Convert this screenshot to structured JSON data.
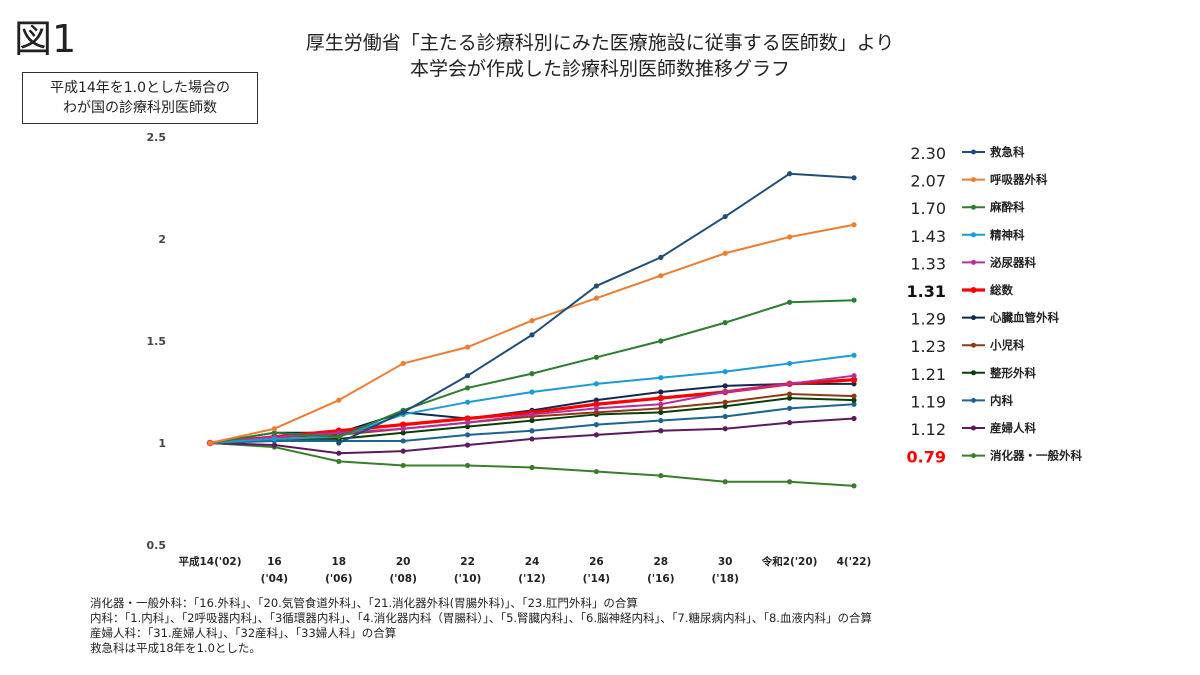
{
  "figure_label": "図1",
  "title_lines": [
    "厚生労働省「主たる診療科別にみた医療施設に従事する医師数」より",
    "本学会が作成した診療科別医師数推移グラフ"
  ],
  "ylabel_lines": [
    "平成14年を1.0とした場合の",
    "わが国の診療科別医師数"
  ],
  "notes": [
    "消化器・一般外科：「16.外科」、「20.気管食道外科」、「21.消化器外科(胃腸外科)」、「23.肛門外科」の合算",
    "内科：「1.内科」、「2呼吸器内科」、「3循環器内科」、「4.消化器内科（胃腸科）」、「5.腎臓内科」、「6.脳神経内科」、「7.糖尿病内科」、「8.血液内科」の合算",
    "産婦人科：「31.産婦人科」、「32産科」、「33婦人科」の合算",
    "救急科は平成18年を1.0とした。"
  ],
  "chart_data": {
    "type": "line",
    "x_tick_labels": [
      [
        "平成14('02)",
        ""
      ],
      [
        "16",
        "('04)"
      ],
      [
        "18",
        "('06)"
      ],
      [
        "20",
        "('08)"
      ],
      [
        "22",
        "('10)"
      ],
      [
        "24",
        "('12)"
      ],
      [
        "26",
        "('14)"
      ],
      [
        "28",
        "('16)"
      ],
      [
        "30",
        "('18)"
      ],
      [
        "令和2('20)",
        ""
      ],
      [
        "4('22)",
        ""
      ]
    ],
    "ylim": [
      0.5,
      2.5
    ],
    "y_ticks": [
      0.5,
      1,
      1.5,
      2,
      2.5
    ],
    "y_tick_labels": [
      "0.5",
      "1",
      "1.5",
      "2",
      "2.5"
    ],
    "grid": false,
    "legend_position": "right",
    "series": [
      {
        "name": "救急科",
        "color": "#1f4e79",
        "bold": false,
        "final_label": "2.30",
        "label_color": "#222222",
        "values": [
          null,
          null,
          1.0,
          1.15,
          1.33,
          1.53,
          1.77,
          1.91,
          2.11,
          2.32,
          2.3
        ]
      },
      {
        "name": "呼吸器外科",
        "color": "#ed7d31",
        "bold": false,
        "final_label": "2.07",
        "label_color": "#222222",
        "values": [
          1.0,
          1.07,
          1.21,
          1.39,
          1.47,
          1.6,
          1.71,
          1.82,
          1.93,
          2.01,
          2.07
        ]
      },
      {
        "name": "麻酔科",
        "color": "#2e7d32",
        "bold": false,
        "final_label": "1.70",
        "label_color": "#222222",
        "values": [
          1.0,
          1.05,
          1.03,
          1.16,
          1.27,
          1.34,
          1.42,
          1.5,
          1.59,
          1.69,
          1.7
        ]
      },
      {
        "name": "精神科",
        "color": "#1b9bd7",
        "bold": false,
        "final_label": "1.43",
        "label_color": "#222222",
        "values": [
          1.0,
          1.02,
          1.03,
          1.14,
          1.2,
          1.25,
          1.29,
          1.32,
          1.35,
          1.39,
          1.43
        ]
      },
      {
        "name": "泌尿器科",
        "color": "#b5309c",
        "bold": false,
        "final_label": "1.33",
        "label_color": "#222222",
        "values": [
          1.0,
          1.03,
          1.05,
          1.07,
          1.1,
          1.14,
          1.17,
          1.19,
          1.25,
          1.29,
          1.33
        ]
      },
      {
        "name": "総数",
        "color": "#ff0000",
        "bold": true,
        "final_label": "1.31",
        "label_color": "#111111",
        "values": [
          1.0,
          1.03,
          1.06,
          1.09,
          1.12,
          1.15,
          1.19,
          1.22,
          1.25,
          1.29,
          1.31
        ]
      },
      {
        "name": "心臓血管外科",
        "color": "#0d2b4e",
        "bold": false,
        "final_label": "1.29",
        "label_color": "#222222",
        "values": [
          1.0,
          1.05,
          1.05,
          1.15,
          1.12,
          1.16,
          1.21,
          1.25,
          1.28,
          1.29,
          1.29
        ]
      },
      {
        "name": "小児科",
        "color": "#8b3a14",
        "bold": false,
        "final_label": "1.23",
        "label_color": "#222222",
        "values": [
          1.0,
          1.03,
          1.04,
          1.07,
          1.1,
          1.13,
          1.15,
          1.17,
          1.2,
          1.24,
          1.23
        ]
      },
      {
        "name": "整形外科",
        "color": "#0b3d0b",
        "bold": false,
        "final_label": "1.21",
        "label_color": "#222222",
        "values": [
          1.0,
          1.02,
          1.02,
          1.05,
          1.08,
          1.11,
          1.14,
          1.15,
          1.18,
          1.22,
          1.21
        ]
      },
      {
        "name": "内科",
        "color": "#1f6391",
        "bold": false,
        "final_label": "1.19",
        "label_color": "#222222",
        "values": [
          1.0,
          1.01,
          1.01,
          1.01,
          1.04,
          1.06,
          1.09,
          1.11,
          1.13,
          1.17,
          1.19
        ]
      },
      {
        "name": "産婦人科",
        "color": "#5c1a5c",
        "bold": false,
        "final_label": "1.12",
        "label_color": "#222222",
        "values": [
          1.0,
          0.99,
          0.95,
          0.96,
          0.99,
          1.02,
          1.04,
          1.06,
          1.07,
          1.1,
          1.12
        ]
      },
      {
        "name": "消化器・一般外科",
        "color": "#3a7d2a",
        "bold": false,
        "final_label": "0.79",
        "label_color": "#ff0000",
        "values": [
          1.0,
          0.98,
          0.91,
          0.89,
          0.89,
          0.88,
          0.86,
          0.84,
          0.81,
          0.81,
          0.79
        ]
      }
    ]
  }
}
